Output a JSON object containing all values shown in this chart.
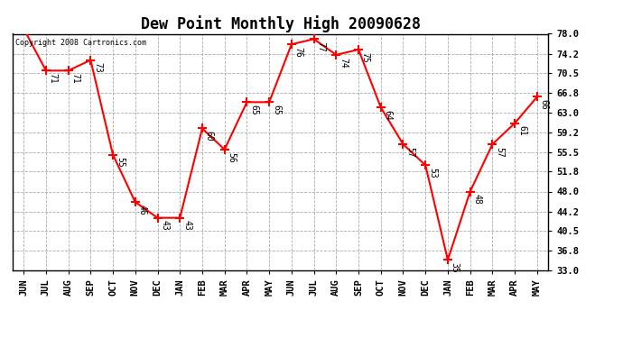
{
  "title": "Dew Point Monthly High 20090628",
  "copyright": "Copyright 2008 Cartronics.com",
  "months": [
    "JUN",
    "JUL",
    "AUG",
    "SEP",
    "OCT",
    "NOV",
    "DEC",
    "JAN",
    "FEB",
    "MAR",
    "APR",
    "MAY",
    "JUN",
    "JUL",
    "AUG",
    "SEP",
    "OCT",
    "NOV",
    "DEC",
    "JAN",
    "FEB",
    "MAR",
    "APR",
    "MAY"
  ],
  "values": [
    79,
    71,
    71,
    73,
    55,
    46,
    43,
    43,
    60,
    56,
    65,
    65,
    76,
    77,
    74,
    75,
    64,
    57,
    53,
    35,
    48,
    57,
    61,
    66
  ],
  "ylim": [
    33.0,
    78.0
  ],
  "yticks": [
    33.0,
    36.8,
    40.5,
    44.2,
    48.0,
    51.8,
    55.5,
    59.2,
    63.0,
    66.8,
    70.5,
    74.2,
    78.0
  ],
  "line_color": "red",
  "marker": "+",
  "marker_size": 7,
  "marker_linewidth": 1.5,
  "bg_color": "white",
  "grid_color": "#aaaaaa",
  "grid_style": "--",
  "title_fontsize": 12,
  "label_fontsize": 7.5,
  "annotation_fontsize": 7,
  "tick_fontsize": 7.5
}
